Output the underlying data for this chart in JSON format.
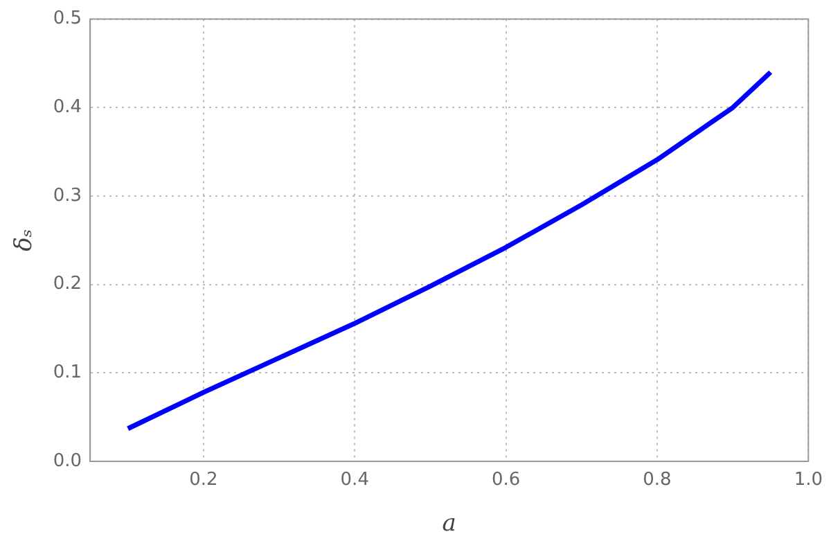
{
  "chart_data": {
    "type": "line",
    "xlabel": "a",
    "ylabel": "δₛ",
    "x": [
      0.1,
      0.2,
      0.3,
      0.4,
      0.5,
      0.6,
      0.7,
      0.8,
      0.9,
      0.95
    ],
    "series": [
      {
        "color": "#0000ff",
        "values": [
          0.037,
          0.078,
          0.117,
          0.156,
          0.198,
          0.242,
          0.29,
          0.341,
          0.4,
          0.44
        ]
      }
    ],
    "xlim": [
      0.05,
      1.0
    ],
    "xticks": [
      0.2,
      0.4,
      0.6,
      0.8,
      {
        "value": 1.0,
        "label": "1.0"
      }
    ],
    "ylim": [
      0,
      0.5
    ],
    "yticks": [
      {
        "value": 0,
        "label": "0.0"
      },
      0.1,
      0.2,
      0.3,
      0.4,
      0.5
    ],
    "grid": true,
    "legend": false,
    "marker": "none",
    "line_style": "solid"
  }
}
